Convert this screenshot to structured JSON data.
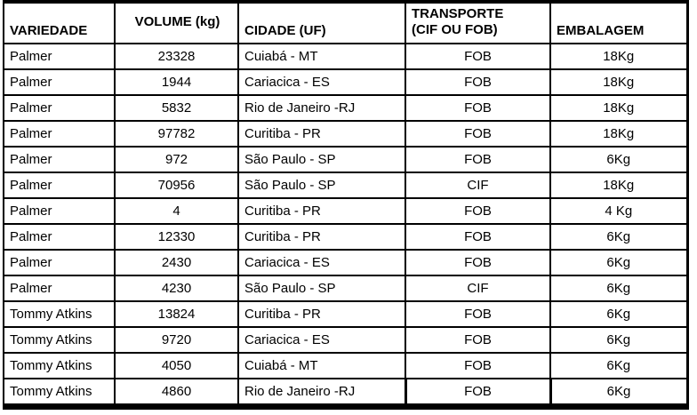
{
  "table": {
    "columns": [
      {
        "label": "VARIEDADE"
      },
      {
        "label": "VOLUME (kg)"
      },
      {
        "label": "CIDADE (UF)"
      },
      {
        "label": "TRANSPORTE",
        "label_line2": "(CIF OU FOB)"
      },
      {
        "label": "EMBALAGEM"
      }
    ],
    "rows": [
      [
        "Palmer",
        "23328",
        "Cuiabá - MT",
        "FOB",
        "18Kg"
      ],
      [
        "Palmer",
        "1944",
        "Cariacica - ES",
        "FOB",
        "18Kg"
      ],
      [
        "Palmer",
        "5832",
        "Rio de Janeiro -RJ",
        "FOB",
        "18Kg"
      ],
      [
        "Palmer",
        "97782",
        "Curitiba - PR",
        "FOB",
        "18Kg"
      ],
      [
        "Palmer",
        "972",
        "São Paulo - SP",
        "FOB",
        "6Kg"
      ],
      [
        "Palmer",
        "70956",
        "São Paulo - SP",
        "CIF",
        "18Kg"
      ],
      [
        "Palmer",
        "4",
        "Curitiba - PR",
        "FOB",
        "4 Kg"
      ],
      [
        "Palmer",
        "12330",
        "Curitiba - PR",
        "FOB",
        "6Kg"
      ],
      [
        "Palmer",
        "2430",
        "Cariacica - ES",
        "FOB",
        "6Kg"
      ],
      [
        "Palmer",
        "4230",
        "São Paulo - SP",
        "CIF",
        "6Kg"
      ],
      [
        "Tommy Atkins",
        "13824",
        "Curitiba - PR",
        "FOB",
        "6Kg"
      ],
      [
        "Tommy Atkins",
        "9720",
        "Cariacica - ES",
        "FOB",
        "6Kg"
      ],
      [
        "Tommy Atkins",
        "4050",
        "Cuiabá - MT",
        "FOB",
        "6Kg"
      ],
      [
        "Tommy Atkins",
        "4860",
        "Rio de Janeiro -RJ",
        "FOB",
        "6Kg"
      ]
    ]
  },
  "colors": {
    "border": "#000000",
    "text": "#000000",
    "background": "#ffffff"
  },
  "chart_data": {
    "type": "table",
    "columns": [
      "VARIEDADE",
      "VOLUME (kg)",
      "CIDADE (UF)",
      "TRANSPORTE (CIF OU FOB)",
      "EMBALAGEM"
    ],
    "rows": [
      [
        "Palmer",
        23328,
        "Cuiabá - MT",
        "FOB",
        "18Kg"
      ],
      [
        "Palmer",
        1944,
        "Cariacica - ES",
        "FOB",
        "18Kg"
      ],
      [
        "Palmer",
        5832,
        "Rio de Janeiro -RJ",
        "FOB",
        "18Kg"
      ],
      [
        "Palmer",
        97782,
        "Curitiba - PR",
        "FOB",
        "18Kg"
      ],
      [
        "Palmer",
        972,
        "São Paulo - SP",
        "FOB",
        "6Kg"
      ],
      [
        "Palmer",
        70956,
        "São Paulo - SP",
        "CIF",
        "18Kg"
      ],
      [
        "Palmer",
        4,
        "Curitiba - PR",
        "FOB",
        "4 Kg"
      ],
      [
        "Palmer",
        12330,
        "Curitiba - PR",
        "FOB",
        "6Kg"
      ],
      [
        "Palmer",
        2430,
        "Cariacica - ES",
        "FOB",
        "6Kg"
      ],
      [
        "Palmer",
        4230,
        "São Paulo - SP",
        "CIF",
        "6Kg"
      ],
      [
        "Tommy Atkins",
        13824,
        "Curitiba - PR",
        "FOB",
        "6Kg"
      ],
      [
        "Tommy Atkins",
        9720,
        "Cariacica - ES",
        "FOB",
        "6Kg"
      ],
      [
        "Tommy Atkins",
        4050,
        "Cuiabá - MT",
        "FOB",
        "6Kg"
      ],
      [
        "Tommy Atkins",
        4860,
        "Rio de Janeiro -RJ",
        "FOB",
        "6Kg"
      ]
    ]
  }
}
